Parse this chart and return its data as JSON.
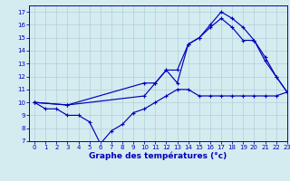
{
  "title": "Graphe des températures (°c)",
  "xlim": [
    -0.5,
    23
  ],
  "ylim": [
    7,
    17.5
  ],
  "xticks": [
    0,
    1,
    2,
    3,
    4,
    5,
    6,
    7,
    8,
    9,
    10,
    11,
    12,
    13,
    14,
    15,
    16,
    17,
    18,
    19,
    20,
    21,
    22,
    23
  ],
  "yticks": [
    7,
    8,
    9,
    10,
    11,
    12,
    13,
    14,
    15,
    16,
    17
  ],
  "bg_color": "#d4ecf0",
  "grid_color": "#b0d0d8",
  "line_color": "#0000bb",
  "line1_x": [
    0,
    1,
    2,
    3,
    4,
    5,
    6,
    7,
    8,
    9,
    10,
    11,
    12,
    13,
    14,
    15,
    16,
    17,
    18,
    19,
    20,
    21,
    22,
    23
  ],
  "line1_y": [
    10,
    9.5,
    9.5,
    9,
    9,
    8.5,
    6.8,
    7.8,
    8.3,
    9.2,
    9.5,
    10,
    10.5,
    11,
    11,
    10.5,
    10.5,
    10.5,
    10.5,
    10.5,
    10.5,
    10.5,
    10.5,
    10.8
  ],
  "line2_x": [
    0,
    3,
    10,
    11,
    12,
    13,
    14,
    15,
    16,
    17,
    18,
    19,
    20,
    21,
    22,
    23
  ],
  "line2_y": [
    10,
    9.8,
    11.5,
    11.5,
    12.5,
    11.5,
    14.5,
    15.0,
    16.0,
    17.0,
    16.5,
    15.8,
    14.8,
    13.2,
    12.0,
    10.8
  ],
  "line3_x": [
    0,
    3,
    10,
    11,
    12,
    13,
    14,
    15,
    16,
    17,
    18,
    19,
    20,
    21,
    22,
    23
  ],
  "line3_y": [
    10,
    9.8,
    10.5,
    11.5,
    12.5,
    12.5,
    14.5,
    15.0,
    15.8,
    16.5,
    15.8,
    14.8,
    14.8,
    13.5,
    12.0,
    10.8
  ]
}
